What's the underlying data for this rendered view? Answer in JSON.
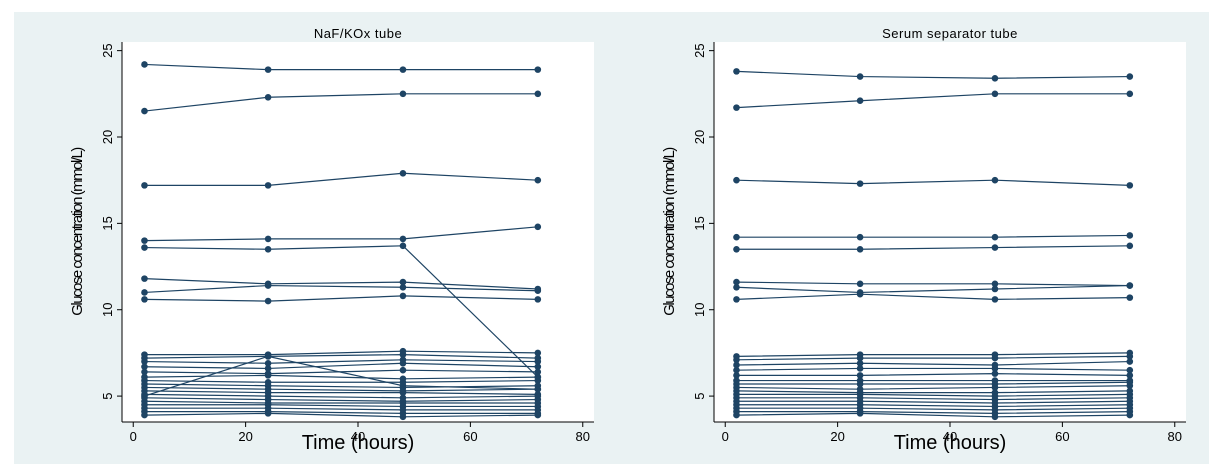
{
  "chart_data": [
    {
      "type": "line",
      "title": "NaF/KOx tube",
      "xlabel": "Time (hours)",
      "ylabel": "Glucose concentration (mmol/L)",
      "xlim": [
        -2,
        82
      ],
      "ylim": [
        3.5,
        25.5
      ],
      "xticks": [
        0,
        20,
        40,
        60,
        80
      ],
      "yticks": [
        5,
        10,
        15,
        20,
        25
      ],
      "x": [
        2,
        24,
        48,
        72
      ],
      "color": "#1e4464",
      "series": [
        {
          "values": [
            24.2,
            23.9,
            23.9,
            23.9
          ]
        },
        {
          "values": [
            21.5,
            22.3,
            22.5,
            22.5
          ]
        },
        {
          "values": [
            17.2,
            17.2,
            17.9,
            17.5
          ]
        },
        {
          "values": [
            14.0,
            14.1,
            14.1,
            14.8
          ]
        },
        {
          "values": [
            13.6,
            13.5,
            13.7,
            6.1
          ]
        },
        {
          "values": [
            11.8,
            11.5,
            11.6,
            11.2
          ]
        },
        {
          "values": [
            11.0,
            11.4,
            11.3,
            11.1
          ]
        },
        {
          "values": [
            10.6,
            10.5,
            10.8,
            10.6
          ]
        },
        {
          "values": [
            7.4,
            7.4,
            7.6,
            7.5
          ]
        },
        {
          "values": [
            7.2,
            7.3,
            7.4,
            7.2
          ]
        },
        {
          "values": [
            5.0,
            7.3,
            5.6,
            5.4
          ]
        },
        {
          "values": [
            7.0,
            6.9,
            7.1,
            7.0
          ]
        },
        {
          "values": [
            6.7,
            6.6,
            6.9,
            6.7
          ]
        },
        {
          "values": [
            6.4,
            6.3,
            6.5,
            6.4
          ]
        },
        {
          "values": [
            6.1,
            6.2,
            6.0,
            6.1
          ]
        },
        {
          "values": [
            5.9,
            5.8,
            5.8,
            5.9
          ]
        },
        {
          "values": [
            5.7,
            5.6,
            5.5,
            5.6
          ]
        },
        {
          "values": [
            5.5,
            5.4,
            5.3,
            5.4
          ]
        },
        {
          "values": [
            5.3,
            5.2,
            5.2,
            5.1
          ]
        },
        {
          "values": [
            5.1,
            5.0,
            4.9,
            5.0
          ]
        },
        {
          "values": [
            4.9,
            4.8,
            4.7,
            4.8
          ]
        },
        {
          "values": [
            4.7,
            4.6,
            4.6,
            4.6
          ]
        },
        {
          "values": [
            4.5,
            4.5,
            4.4,
            4.4
          ]
        },
        {
          "values": [
            4.3,
            4.3,
            4.2,
            4.2
          ]
        },
        {
          "values": [
            4.1,
            4.1,
            4.0,
            4.0
          ]
        },
        {
          "values": [
            3.9,
            4.0,
            3.8,
            3.9
          ]
        }
      ]
    },
    {
      "type": "line",
      "title": "Serum separator tube",
      "xlabel": "Time (hours)",
      "ylabel": "Glucose concentration (mmol/L)",
      "xlim": [
        -2,
        82
      ],
      "ylim": [
        3.5,
        25.5
      ],
      "xticks": [
        0,
        20,
        40,
        60,
        80
      ],
      "yticks": [
        5,
        10,
        15,
        20,
        25
      ],
      "x": [
        2,
        24,
        48,
        72
      ],
      "color": "#1e4464",
      "series": [
        {
          "values": [
            23.8,
            23.5,
            23.4,
            23.5
          ]
        },
        {
          "values": [
            21.7,
            22.1,
            22.5,
            22.5
          ]
        },
        {
          "values": [
            17.5,
            17.3,
            17.5,
            17.2
          ]
        },
        {
          "values": [
            14.2,
            14.2,
            14.2,
            14.3
          ]
        },
        {
          "values": [
            13.5,
            13.5,
            13.6,
            13.7
          ]
        },
        {
          "values": [
            11.6,
            11.5,
            11.5,
            11.4
          ]
        },
        {
          "values": [
            11.3,
            11.0,
            11.2,
            11.4
          ]
        },
        {
          "values": [
            10.6,
            10.9,
            10.6,
            10.7
          ]
        },
        {
          "values": [
            7.3,
            7.4,
            7.4,
            7.5
          ]
        },
        {
          "values": [
            7.1,
            7.2,
            7.2,
            7.3
          ]
        },
        {
          "values": [
            6.8,
            6.9,
            6.8,
            7.0
          ]
        },
        {
          "values": [
            6.5,
            6.6,
            6.6,
            6.5
          ]
        },
        {
          "values": [
            6.2,
            6.2,
            6.3,
            6.2
          ]
        },
        {
          "values": [
            5.9,
            5.9,
            5.9,
            5.9
          ]
        },
        {
          "values": [
            5.7,
            5.7,
            5.7,
            5.8
          ]
        },
        {
          "values": [
            5.5,
            5.4,
            5.5,
            5.6
          ]
        },
        {
          "values": [
            5.3,
            5.2,
            5.2,
            5.3
          ]
        },
        {
          "values": [
            5.1,
            5.1,
            5.0,
            5.1
          ]
        },
        {
          "values": [
            4.9,
            4.9,
            4.8,
            4.9
          ]
        },
        {
          "values": [
            4.7,
            4.7,
            4.6,
            4.7
          ]
        },
        {
          "values": [
            4.5,
            4.5,
            4.4,
            4.5
          ]
        },
        {
          "values": [
            4.3,
            4.3,
            4.2,
            4.3
          ]
        },
        {
          "values": [
            4.1,
            4.1,
            4.0,
            4.1
          ]
        },
        {
          "values": [
            3.9,
            4.0,
            3.8,
            3.9
          ]
        }
      ]
    }
  ]
}
